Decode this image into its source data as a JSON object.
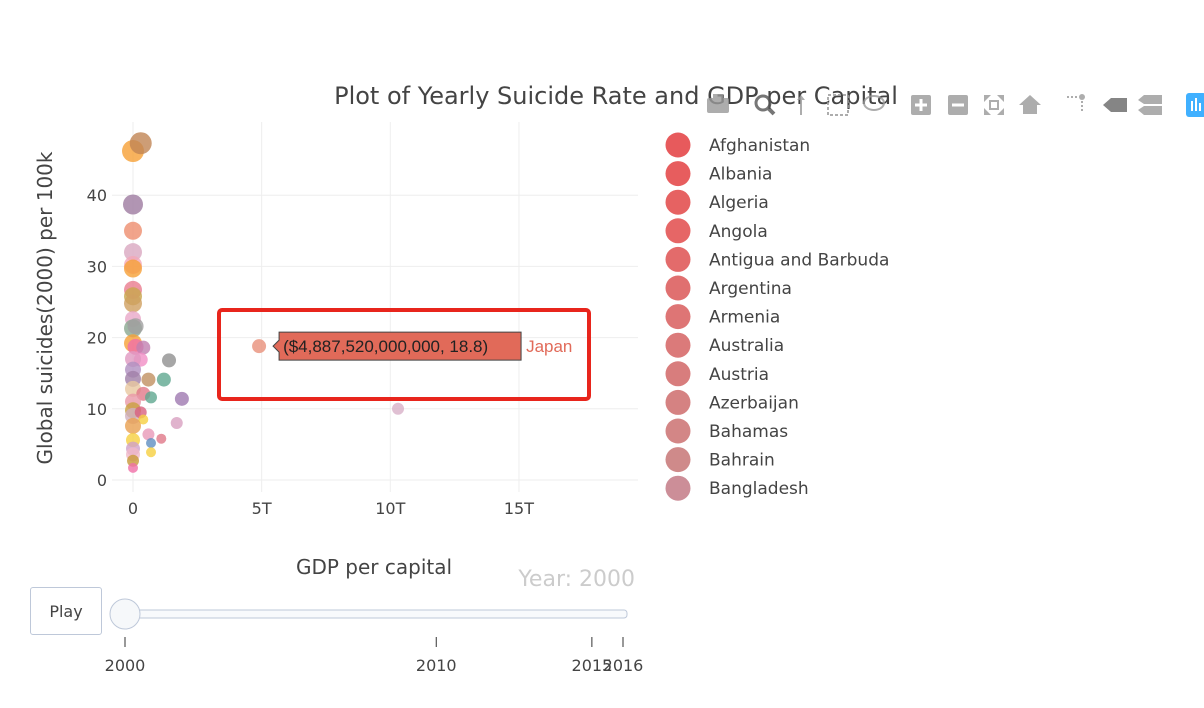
{
  "chart_data": {
    "type": "scatter",
    "title": "Plot of Yearly Suicide Rate and GDP per Capital",
    "xlabel": "GDP per capital",
    "ylabel": "Global suicides(2000) per 100k",
    "x_ticks": [
      "0",
      "5T",
      "10T",
      "15T"
    ],
    "y_ticks": [
      "0",
      "10",
      "20",
      "30",
      "40"
    ],
    "xlim": [
      -0.7,
      19.4
    ],
    "ylim": [
      -1,
      50
    ],
    "grid": true,
    "legend_placement": "right",
    "frame_label": "Year: 2000",
    "points": [
      {
        "x": 0.0,
        "y": 46.2,
        "c": "#f6a036",
        "s": 11
      },
      {
        "x": 0.3,
        "y": 47.3,
        "c": "#c08454",
        "s": 11
      },
      {
        "x": 0.0,
        "y": 38.7,
        "c": "#9e7aa0",
        "s": 10
      },
      {
        "x": 0.0,
        "y": 35.0,
        "c": "#ee8d6e",
        "s": 9
      },
      {
        "x": 0.0,
        "y": 32.0,
        "c": "#d9a7c0",
        "s": 9
      },
      {
        "x": 0.0,
        "y": 30.2,
        "c": "#f3a8b8",
        "s": 9
      },
      {
        "x": 0.0,
        "y": 29.7,
        "c": "#f6a036",
        "s": 9
      },
      {
        "x": 0.0,
        "y": 26.7,
        "c": "#ea7c8e",
        "s": 9
      },
      {
        "x": 0.0,
        "y": 25.8,
        "c": "#c8a64c",
        "s": 9
      },
      {
        "x": 0.0,
        "y": 24.8,
        "c": "#d0a060",
        "s": 9
      },
      {
        "x": 0.0,
        "y": 22.6,
        "c": "#e8a8c8",
        "s": 8
      },
      {
        "x": 0.0,
        "y": 21.3,
        "c": "#8aa890",
        "s": 9
      },
      {
        "x": 0.1,
        "y": 21.6,
        "c": "#a0a0a0",
        "s": 8
      },
      {
        "x": 0.0,
        "y": 19.2,
        "c": "#f6a036",
        "s": 9
      },
      {
        "x": 0.1,
        "y": 18.7,
        "c": "#f06fa8",
        "s": 8
      },
      {
        "x": 0.4,
        "y": 18.6,
        "c": "#c080b0",
        "s": 7
      },
      {
        "x": 0.3,
        "y": 16.9,
        "c": "#f18fc6",
        "s": 7
      },
      {
        "x": 0.0,
        "y": 17.0,
        "c": "#e098c0",
        "s": 8
      },
      {
        "x": 0.0,
        "y": 15.5,
        "c": "#b090c0",
        "s": 8
      },
      {
        "x": 1.4,
        "y": 16.8,
        "c": "#909090",
        "s": 7
      },
      {
        "x": 0.0,
        "y": 14.2,
        "c": "#a080a8",
        "s": 8
      },
      {
        "x": 0.6,
        "y": 14.1,
        "c": "#c09060",
        "s": 7
      },
      {
        "x": 1.2,
        "y": 14.1,
        "c": "#5fa890",
        "s": 7
      },
      {
        "x": 0.0,
        "y": 12.8,
        "c": "#e8c8a0",
        "s": 8
      },
      {
        "x": 0.4,
        "y": 12.1,
        "c": "#e07888",
        "s": 7
      },
      {
        "x": 0.7,
        "y": 11.6,
        "c": "#5fa890",
        "s": 6
      },
      {
        "x": 1.9,
        "y": 11.4,
        "c": "#9f79b0",
        "s": 7
      },
      {
        "x": 0.0,
        "y": 11.0,
        "c": "#e898a8",
        "s": 8
      },
      {
        "x": 0.0,
        "y": 9.8,
        "c": "#c9a040",
        "s": 8
      },
      {
        "x": 0.0,
        "y": 9.0,
        "c": "#d0b0c0",
        "s": 8
      },
      {
        "x": 0.3,
        "y": 9.5,
        "c": "#d86080",
        "s": 6
      },
      {
        "x": 0.4,
        "y": 8.5,
        "c": "#f6d040",
        "s": 5
      },
      {
        "x": 1.7,
        "y": 8.0,
        "c": "#d8a0c0",
        "s": 6
      },
      {
        "x": 0.0,
        "y": 7.6,
        "c": "#e8a050",
        "s": 8
      },
      {
        "x": 0.6,
        "y": 6.4,
        "c": "#e898b8",
        "s": 6
      },
      {
        "x": 1.1,
        "y": 5.8,
        "c": "#e07888",
        "s": 5
      },
      {
        "x": 0.7,
        "y": 5.2,
        "c": "#5f8ec0",
        "s": 5
      },
      {
        "x": 0.0,
        "y": 5.6,
        "c": "#f6d040",
        "s": 7
      },
      {
        "x": 0.0,
        "y": 4.4,
        "c": "#d0a0c8",
        "s": 7
      },
      {
        "x": 0.0,
        "y": 3.6,
        "c": "#f0b8c8",
        "s": 7
      },
      {
        "x": 0.7,
        "y": 3.9,
        "c": "#f6d040",
        "s": 5
      },
      {
        "x": 0.0,
        "y": 2.7,
        "c": "#c89838",
        "s": 6
      },
      {
        "x": 0.0,
        "y": 1.7,
        "c": "#f06fa8",
        "s": 5
      },
      {
        "x": 10.3,
        "y": 10.0,
        "c": "#d8b0c8",
        "s": 6
      },
      {
        "x": 4.9,
        "y": 18.8,
        "c": "#e8907a",
        "s": 7
      }
    ],
    "hover": {
      "text": "($4,887,520,000,000, 18.8)",
      "name": "Japan",
      "x": 4.9,
      "y": 18.8
    },
    "legend": [
      {
        "name": "Afghanistan",
        "color": "#e75a5c"
      },
      {
        "name": "Albania",
        "color": "#e75d5e"
      },
      {
        "name": "Algeria",
        "color": "#e66262"
      },
      {
        "name": "Angola",
        "color": "#e66666"
      },
      {
        "name": "Antigua and Barbuda",
        "color": "#e36b6b"
      },
      {
        "name": "Argentina",
        "color": "#e07070"
      },
      {
        "name": "Armenia",
        "color": "#de7575"
      },
      {
        "name": "Australia",
        "color": "#db7a7a"
      },
      {
        "name": "Austria",
        "color": "#d87d7d"
      },
      {
        "name": "Azerbaijan",
        "color": "#d58282"
      },
      {
        "name": "Bahamas",
        "color": "#d38686"
      },
      {
        "name": "Bahrain",
        "color": "#cf8a8a"
      },
      {
        "name": "Bangladesh",
        "color": "#cc8e98"
      }
    ],
    "slider": {
      "value": 2000,
      "ticks": [
        "2000",
        "2010",
        "2015",
        "2016"
      ],
      "tick_years": [
        2000,
        2010,
        2015,
        2016
      ],
      "range": [
        2000,
        2016
      ]
    }
  },
  "controls": {
    "play_label": "Play"
  },
  "modebar": [
    "camera-icon",
    "zoom-icon",
    "pan-icon",
    "box-select-icon",
    "lasso-icon",
    "zoom-in-icon",
    "zoom-out-icon",
    "autoscale-icon",
    "reset-axes-icon",
    "spike-lines-icon",
    "hover-closest-icon",
    "hover-compare-icon",
    "plotly-logo-icon"
  ],
  "colors": {
    "highlight_box": "#e8251c",
    "hover_fill": "#e16a59"
  }
}
